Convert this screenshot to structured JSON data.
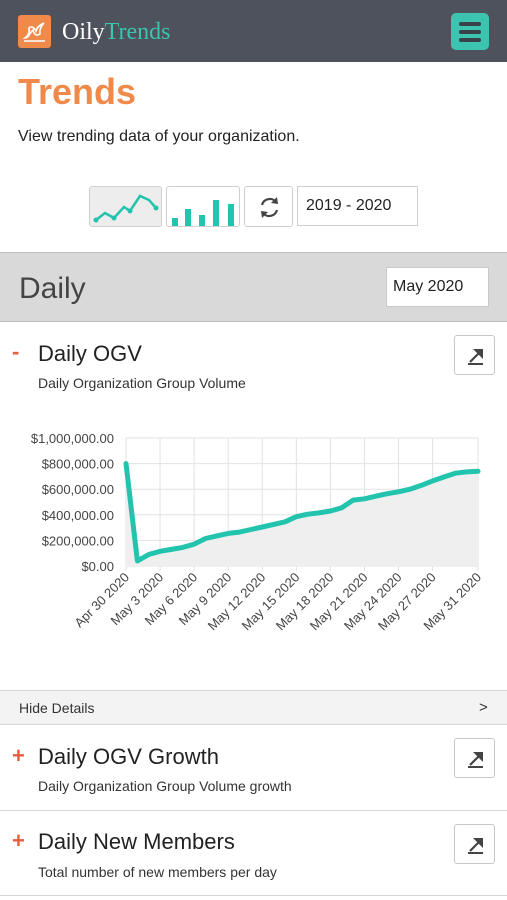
{
  "header": {
    "brand_part1": "Oily",
    "brand_part2": "Trends",
    "brand_color": "#3cc4b0",
    "logo_color": "#f08a4b",
    "menu_icon": "hamburger-menu-icon"
  },
  "page": {
    "title": "Trends",
    "subtitle": "View trending data of your organization."
  },
  "toolbar": {
    "line_chart_icon": "line-chart-icon",
    "bar_chart_icon": "bar-chart-icon",
    "refresh_icon": "refresh-icon",
    "year_range": "2019 - 2020"
  },
  "period": {
    "title": "Daily",
    "month": "May 2020"
  },
  "sections": [
    {
      "sign": "-",
      "title": "Daily OGV",
      "subtitle": "Daily Organization Group Volume",
      "export_icon": "export-icon"
    },
    {
      "sign": "+",
      "title": "Daily OGV Growth",
      "subtitle": "Daily Organization Group Volume growth",
      "export_icon": "export-icon"
    },
    {
      "sign": "+",
      "title": "Daily New Members",
      "subtitle": "Total number of new members per day",
      "export_icon": "export-icon"
    }
  ],
  "details": {
    "label": "Hide Details",
    "arrow": ">"
  },
  "chart_data": {
    "type": "area",
    "title": "",
    "xlabel": "",
    "ylabel": "",
    "line_color": "#22c4ad",
    "fill_color": "#efefef",
    "ylim": [
      0,
      1000000
    ],
    "y_ticks": [
      "$0.00",
      "$200,000.00",
      "$400,000.00",
      "$600,000.00",
      "$800,000.00",
      "$1,000,000.00"
    ],
    "x_tick_labels": [
      "Apr 30 2020",
      "May 3 2020",
      "May 6 2020",
      "May 9 2020",
      "May 12 2020",
      "May 15 2020",
      "May 18 2020",
      "May 21 2020",
      "May 24 2020",
      "May 27 2020",
      "May 31 2020"
    ],
    "grid": true,
    "x": [
      "2020-04-30",
      "2020-05-01",
      "2020-05-02",
      "2020-05-03",
      "2020-05-04",
      "2020-05-05",
      "2020-05-06",
      "2020-05-07",
      "2020-05-08",
      "2020-05-09",
      "2020-05-10",
      "2020-05-11",
      "2020-05-12",
      "2020-05-13",
      "2020-05-14",
      "2020-05-15",
      "2020-05-16",
      "2020-05-17",
      "2020-05-18",
      "2020-05-19",
      "2020-05-20",
      "2020-05-21",
      "2020-05-22",
      "2020-05-23",
      "2020-05-24",
      "2020-05-25",
      "2020-05-26",
      "2020-05-27",
      "2020-05-28",
      "2020-05-29",
      "2020-05-30",
      "2020-05-31"
    ],
    "values": [
      800000,
      40000,
      90000,
      115000,
      130000,
      145000,
      170000,
      215000,
      235000,
      255000,
      265000,
      285000,
      305000,
      325000,
      345000,
      385000,
      405000,
      415000,
      430000,
      455000,
      515000,
      525000,
      545000,
      565000,
      580000,
      600000,
      630000,
      665000,
      695000,
      725000,
      735000,
      740000
    ]
  }
}
